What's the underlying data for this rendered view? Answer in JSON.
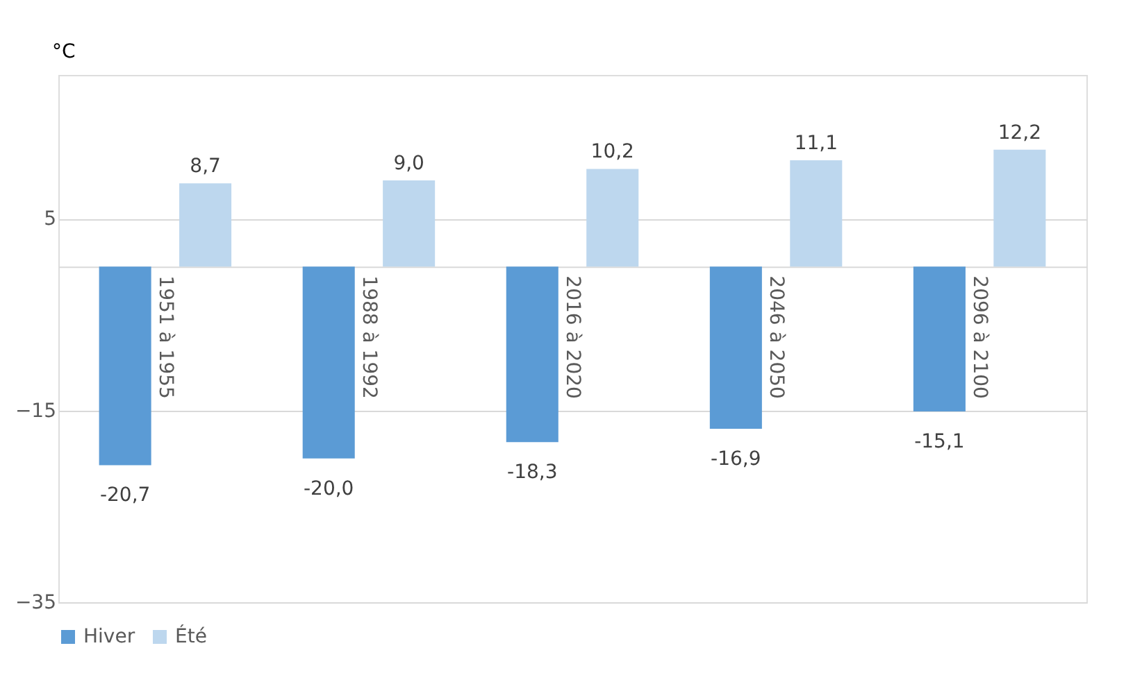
{
  "chart_data": {
    "type": "bar",
    "ylabel": "°C",
    "categories": [
      "1951 à 1955",
      "1988 à 1992",
      "2016 à 2020",
      "2046 à 2050",
      "2096 à 2100"
    ],
    "series": [
      {
        "name": "Hiver",
        "color": "#5b9bd5",
        "values": [
          -20.7,
          -20.0,
          -18.3,
          -16.9,
          -15.1
        ],
        "value_labels": [
          "-20,7",
          "-20,0",
          "-18,3",
          "-16,9",
          "-15,1"
        ]
      },
      {
        "name": "Été",
        "color": "#bdd7ee",
        "values": [
          8.7,
          9.0,
          10.2,
          11.1,
          12.2
        ],
        "value_labels": [
          "8,7",
          "9,0",
          "10,2",
          "11,1",
          "12,2"
        ]
      }
    ],
    "ylim": [
      -35,
      20
    ],
    "yticks": [
      5,
      -15,
      -35
    ],
    "grid": "y",
    "legend": "bottom"
  }
}
